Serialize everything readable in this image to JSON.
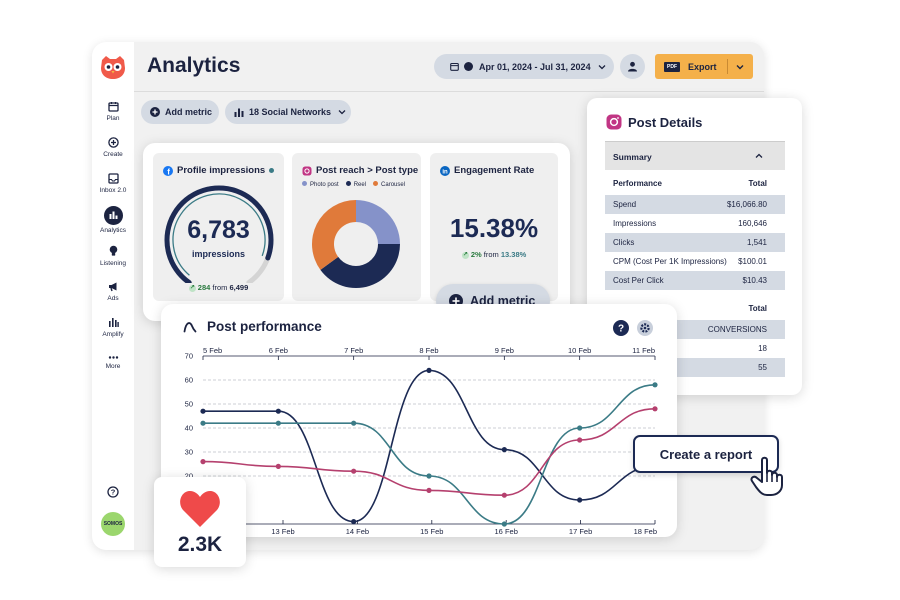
{
  "header": {
    "title": "Analytics",
    "date_range": "Apr 01, 2024 - Jul 31, 2024",
    "export_label": "Export",
    "pdf_badge": "PDF"
  },
  "toolbar": {
    "add_metric": "Add metric",
    "networks": "18 Social Networks"
  },
  "sidebar": {
    "items": [
      {
        "label": "Plan",
        "icon": "calendar-icon"
      },
      {
        "label": "Create",
        "icon": "plus-circle-icon"
      },
      {
        "label": "Inbox 2.0",
        "icon": "inbox-icon"
      },
      {
        "label": "Analytics",
        "icon": "bar-chart-icon"
      },
      {
        "label": "Listening",
        "icon": "lightbulb-icon"
      },
      {
        "label": "Ads",
        "icon": "megaphone-icon"
      },
      {
        "label": "Amplify",
        "icon": "amplify-icon"
      },
      {
        "label": "More",
        "icon": "more-icon"
      }
    ],
    "avatar_text": "SOMOS"
  },
  "metrics": {
    "profile_impressions": {
      "title": "Profile impressions",
      "value": "6,783",
      "unit": "impressions",
      "delta": "284",
      "delta_from_label": "from",
      "delta_from": "6,499",
      "gauge_fraction": 0.88
    },
    "post_reach": {
      "title": "Post reach > Post type",
      "legend": [
        {
          "label": "Photo post",
          "color": "#8592c9",
          "share": 0.25
        },
        {
          "label": "Reel",
          "color": "#1c2a54",
          "share": 0.4
        },
        {
          "label": "Carousel",
          "color": "#e07a3a",
          "share": 0.35
        }
      ]
    },
    "engagement_rate": {
      "title": "Engagement Rate",
      "value": "15.38%",
      "delta": "2%",
      "delta_from_label": "from",
      "delta_from": "13.38%"
    }
  },
  "floating": {
    "add_metric": "Add metric",
    "create_report": "Create a report",
    "likes": "2.3K"
  },
  "post_details": {
    "title": "Post Details",
    "summary_label": "Summary",
    "col_performance": "Performance",
    "col_total": "Total",
    "rows": [
      {
        "label": "Spend",
        "value": "$16,066.80"
      },
      {
        "label": "Impressions",
        "value": "160,646"
      },
      {
        "label": "Clicks",
        "value": "1,541"
      },
      {
        "label": "CPM (Cost Per 1K Impressions)",
        "value": "$100.01"
      },
      {
        "label": "Cost Per Click",
        "value": "$10.43"
      }
    ],
    "col_total_2": "Total",
    "conversions_label": "CONVERSIONS",
    "rows2": [
      {
        "value": "18"
      },
      {
        "value": "55"
      }
    ]
  },
  "post_performance": {
    "title": "Post performance",
    "chart_data": {
      "type": "line",
      "title": "Post performance",
      "ylim": [
        0,
        70
      ],
      "yticks": [
        20,
        30,
        40,
        50,
        60,
        70
      ],
      "top_x_labels": [
        "5 Feb",
        "6 Feb",
        "7 Feb",
        "8 Feb",
        "9 Feb",
        "10 Feb",
        "11 Feb"
      ],
      "bottom_x_labels": [
        "13 Feb",
        "14 Feb",
        "15 Feb",
        "16 Feb",
        "17 Feb",
        "18 Feb"
      ],
      "series": [
        {
          "color": "#1c2a54",
          "points": [
            [
              0,
              47
            ],
            [
              1,
              47
            ],
            [
              2,
              1
            ],
            [
              3,
              64
            ],
            [
              4,
              31
            ],
            [
              5,
              10
            ],
            [
              6,
              24
            ]
          ]
        },
        {
          "color": "#3b7b86",
          "points": [
            [
              0,
              42
            ],
            [
              1,
              42
            ],
            [
              2,
              42
            ],
            [
              3,
              20
            ],
            [
              4,
              0
            ],
            [
              5,
              40
            ],
            [
              6,
              58
            ]
          ]
        },
        {
          "color": "#b5406e",
          "points": [
            [
              0,
              26
            ],
            [
              1,
              24
            ],
            [
              2,
              22
            ],
            [
              3,
              14
            ],
            [
              4,
              12
            ],
            [
              5,
              35
            ],
            [
              6,
              48
            ]
          ]
        }
      ],
      "grid": true
    }
  }
}
